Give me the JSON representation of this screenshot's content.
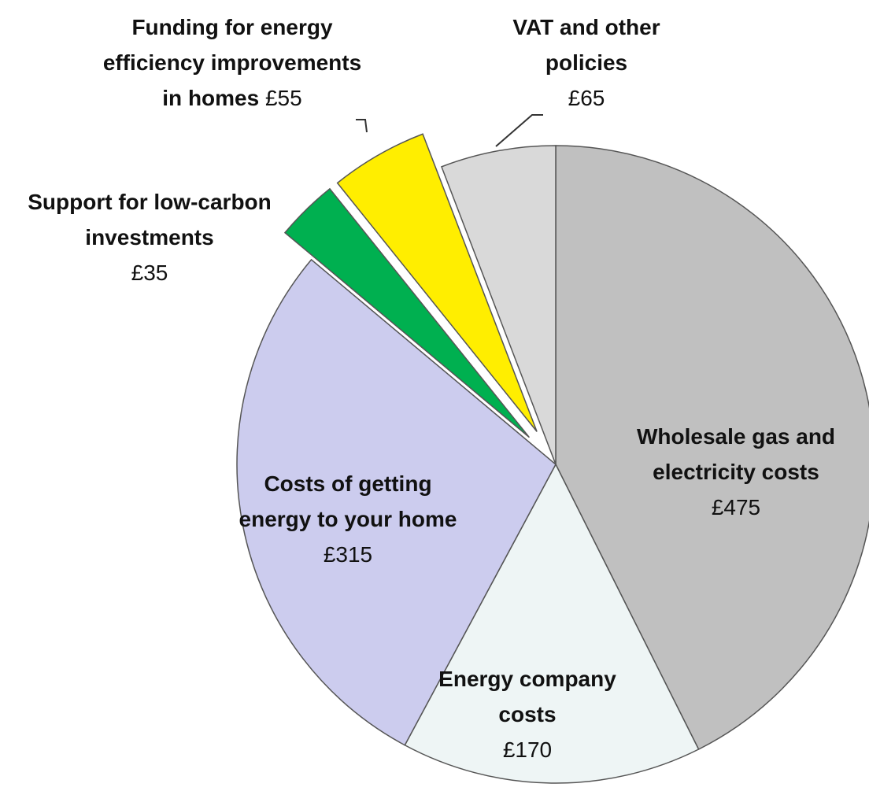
{
  "chart_data": {
    "type": "pie",
    "categories": [
      "Wholesale gas and electricity costs",
      "Energy company costs",
      "Costs of getting energy to your home",
      "Support for low-carbon investments",
      "Funding for energy efficiency improvements in homes",
      "VAT and other policies"
    ],
    "values": [
      475,
      170,
      315,
      35,
      55,
      65
    ],
    "value_labels": [
      "£475",
      "£170",
      "£315",
      "£35",
      "£55",
      "£65"
    ],
    "colors": [
      "#c0c0c0",
      "#eef5f5",
      "#ccccee",
      "#00b050",
      "#ffee00",
      "#d9d9d9"
    ],
    "exploded": [
      false,
      false,
      false,
      true,
      true,
      false
    ]
  }
}
